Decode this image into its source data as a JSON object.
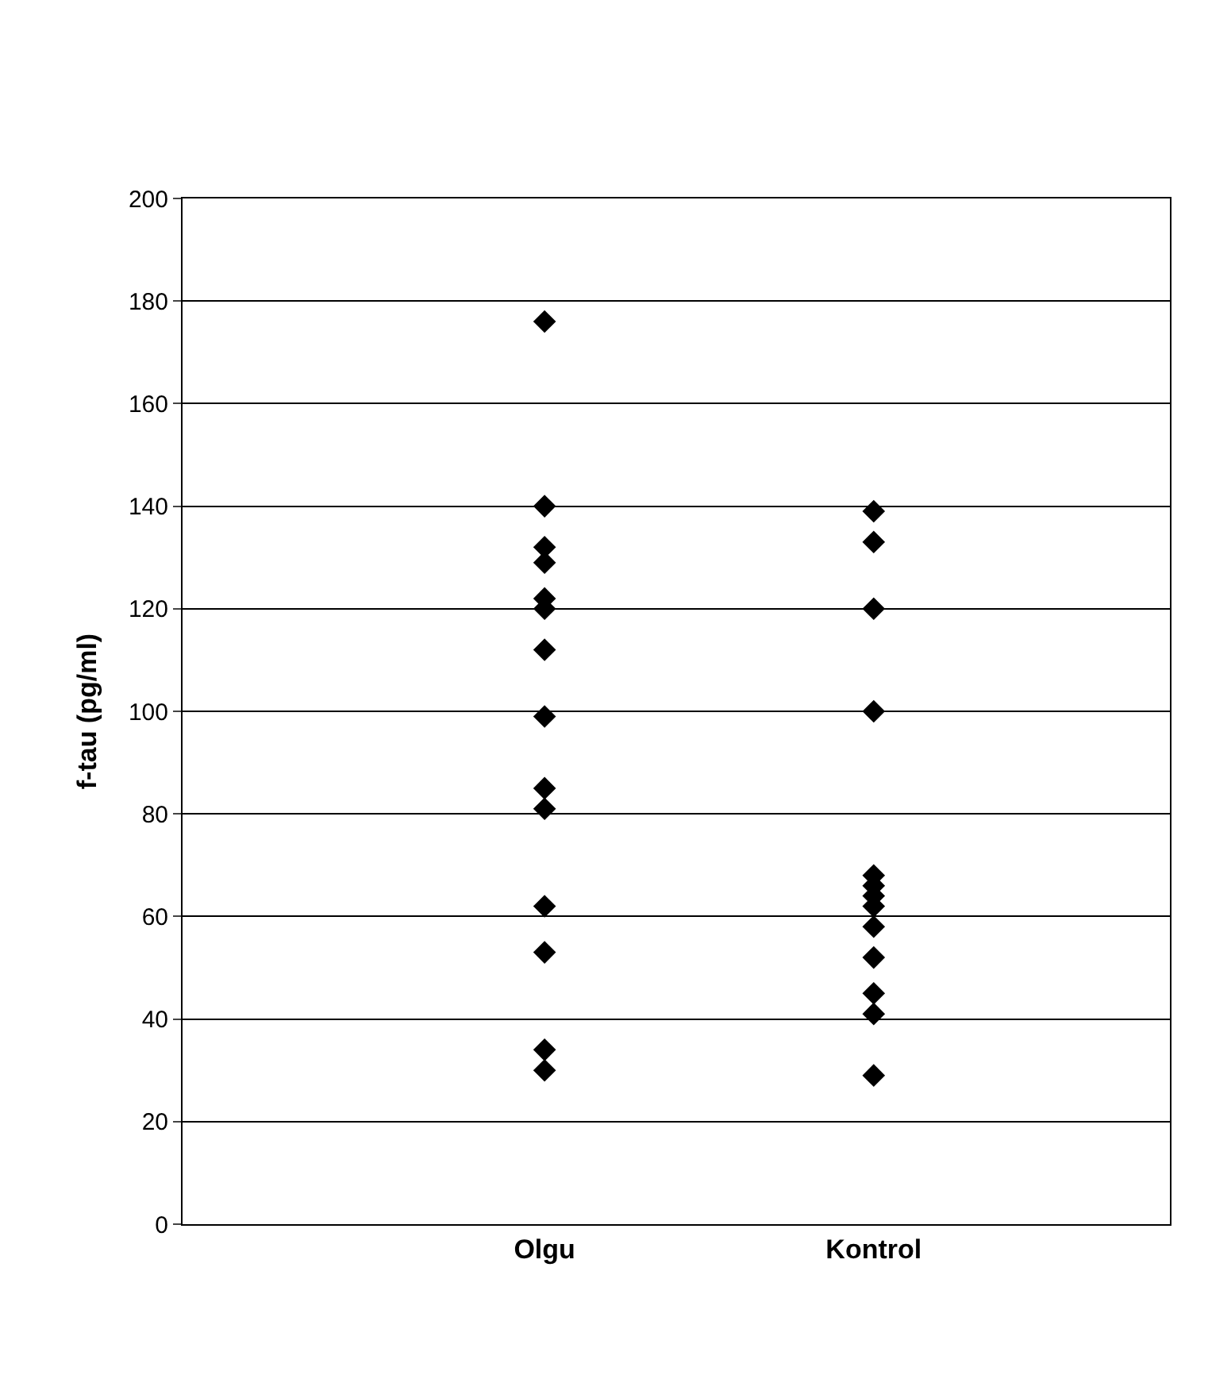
{
  "chart_data": {
    "type": "scatter",
    "ylabel": "f-tau (pg/ml)",
    "categories": [
      "Olgu",
      "Kontrol"
    ],
    "series": [
      {
        "color": "#000000",
        "x": [
          "Olgu",
          "Olgu",
          "Olgu",
          "Olgu",
          "Olgu",
          "Olgu",
          "Olgu",
          "Olgu",
          "Olgu",
          "Olgu",
          "Olgu",
          "Olgu",
          "Olgu",
          "Olgu"
        ],
        "values": [
          176,
          140,
          132,
          129,
          122,
          120,
          112,
          99,
          85,
          81,
          62,
          53,
          34,
          30
        ]
      },
      {
        "color": "#000000",
        "x": [
          "Kontrol",
          "Kontrol",
          "Kontrol",
          "Kontrol",
          "Kontrol",
          "Kontrol",
          "Kontrol",
          "Kontrol",
          "Kontrol",
          "Kontrol",
          "Kontrol",
          "Kontrol",
          "Kontrol"
        ],
        "values": [
          139,
          133,
          120,
          100,
          68,
          66,
          64,
          62,
          58,
          52,
          45,
          41,
          29
        ]
      }
    ],
    "ylim": [
      0,
      200
    ],
    "yticks": [
      0,
      20,
      40,
      60,
      80,
      100,
      120,
      140,
      160,
      180,
      200
    ],
    "grid": "y",
    "marker": "diamond"
  }
}
